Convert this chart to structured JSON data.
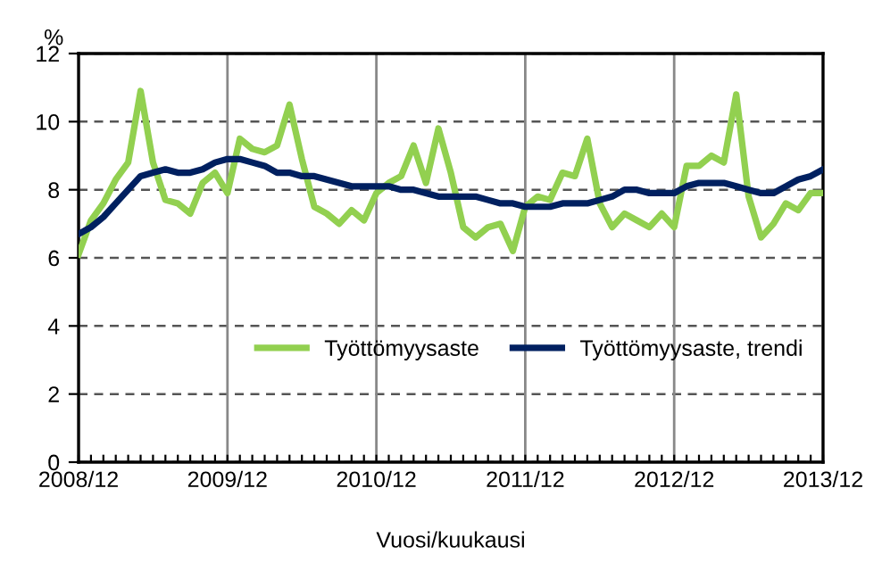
{
  "chart_data": {
    "type": "line",
    "ylabel": "%",
    "xlabel": "Vuosi/kuukausi",
    "categories": [
      "2008/12",
      null,
      null,
      null,
      null,
      null,
      null,
      null,
      null,
      null,
      null,
      null,
      "2009/12",
      null,
      null,
      null,
      null,
      null,
      null,
      null,
      null,
      null,
      null,
      null,
      "2010/12",
      null,
      null,
      null,
      null,
      null,
      null,
      null,
      null,
      null,
      null,
      null,
      "2011/12",
      null,
      null,
      null,
      null,
      null,
      null,
      null,
      null,
      null,
      null,
      null,
      "2012/12",
      null,
      null,
      null,
      null,
      null,
      null,
      null,
      null,
      null,
      null,
      null,
      "2013/12"
    ],
    "series": [
      {
        "name": "Työttömyysaste",
        "color": "#92d050",
        "values": [
          6.1,
          7.1,
          7.6,
          8.3,
          8.8,
          10.9,
          8.8,
          7.7,
          7.6,
          7.3,
          8.2,
          8.5,
          7.9,
          9.5,
          9.2,
          9.1,
          9.3,
          10.5,
          8.9,
          7.5,
          7.3,
          7.0,
          7.4,
          7.1,
          7.9,
          8.2,
          8.4,
          9.3,
          8.2,
          9.8,
          8.5,
          6.9,
          6.6,
          6.9,
          7.0,
          6.2,
          7.5,
          7.8,
          7.7,
          8.5,
          8.4,
          9.5,
          7.6,
          6.9,
          7.3,
          7.1,
          6.9,
          7.3,
          6.9,
          8.7,
          8.7,
          9.0,
          8.8,
          10.8,
          7.8,
          6.6,
          7.0,
          7.6,
          7.4,
          7.9,
          7.9
        ]
      },
      {
        "name": "Työttömyysaste, trendi",
        "color": "#002060",
        "values": [
          6.7,
          6.9,
          7.2,
          7.6,
          8.0,
          8.4,
          8.5,
          8.6,
          8.5,
          8.5,
          8.6,
          8.8,
          8.9,
          8.9,
          8.8,
          8.7,
          8.5,
          8.5,
          8.4,
          8.4,
          8.3,
          8.2,
          8.1,
          8.1,
          8.1,
          8.1,
          8.0,
          8.0,
          7.9,
          7.8,
          7.8,
          7.8,
          7.8,
          7.7,
          7.6,
          7.6,
          7.5,
          7.5,
          7.5,
          7.6,
          7.6,
          7.6,
          7.7,
          7.8,
          8.0,
          8.0,
          7.9,
          7.9,
          7.9,
          8.1,
          8.2,
          8.2,
          8.2,
          8.1,
          8.0,
          7.9,
          7.9,
          8.1,
          8.3,
          8.4,
          8.6
        ]
      }
    ],
    "ylim": [
      0,
      12
    ],
    "yticks": [
      0,
      2,
      4,
      6,
      8,
      10,
      12
    ],
    "grid": true,
    "legend": "bottom right",
    "marker": "none",
    "line_style": "solid"
  }
}
